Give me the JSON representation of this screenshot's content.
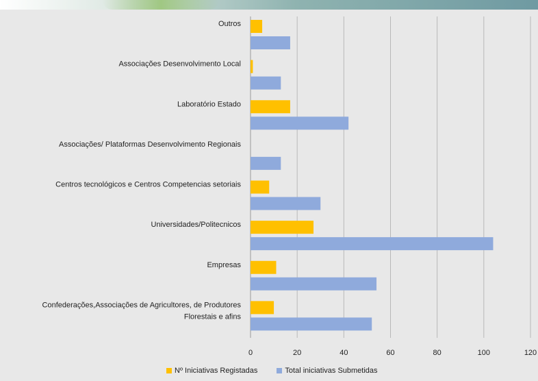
{
  "chart_data": {
    "type": "bar",
    "orientation": "horizontal",
    "categories": [
      "Outros",
      "Associações Desenvolvimento Local",
      "Laboratório Estado",
      "Associações/ Plataformas Desenvolvimento Regionais",
      "Centros tecnológicos e Centros Competencias setoriais",
      "Universidades/Politecnicos",
      "Empresas",
      "Confederações,Associações de Agricultores, de Produtores Florestais e afins"
    ],
    "series": [
      {
        "name": "Nº Iniciativas Registadas",
        "color": "#ffc000",
        "values": [
          5,
          1,
          17,
          0,
          8,
          27,
          11,
          10
        ]
      },
      {
        "name": "Total iniciativas Submetidas",
        "color": "#8faadc",
        "values": [
          17,
          13,
          42,
          13,
          30,
          104,
          54,
          52
        ]
      }
    ],
    "xlim": [
      0,
      120
    ],
    "xticks": [
      "0",
      "20",
      "40",
      "60",
      "80",
      "100",
      "120"
    ],
    "grid": true,
    "legend_position": "bottom"
  }
}
